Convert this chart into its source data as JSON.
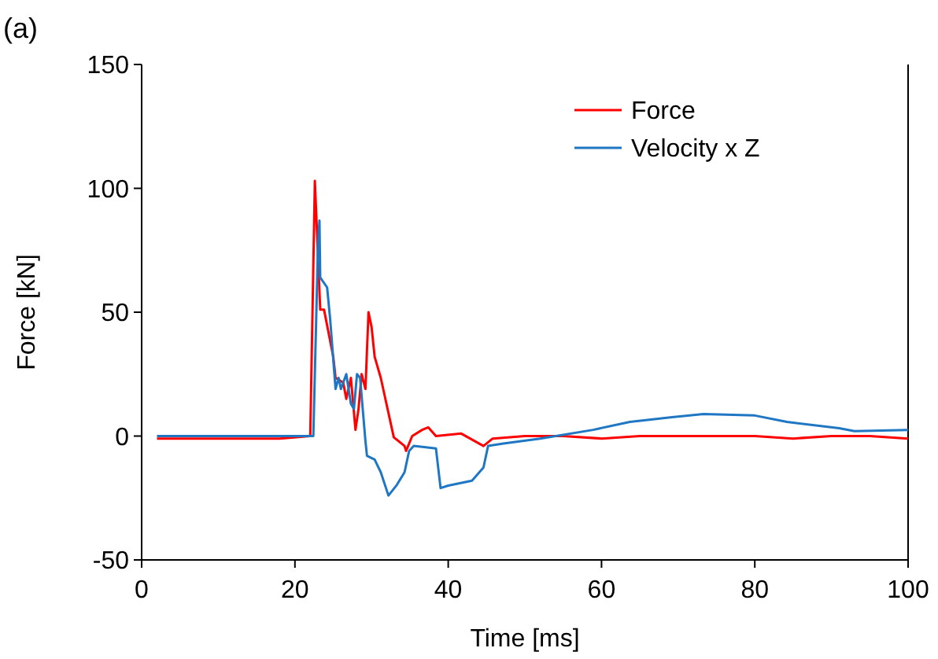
{
  "chart_data": {
    "type": "line",
    "xlabel": "Time [ms]",
    "ylabel": "Force [kN]",
    "annotations": [
      "(a)"
    ],
    "xlim": [
      0,
      100
    ],
    "xticks": [
      0,
      20,
      40,
      60,
      80,
      100
    ],
    "ylim": [
      -50,
      150
    ],
    "yticks": [
      -50,
      0,
      50,
      100,
      150
    ],
    "grid": false,
    "legend": "top right",
    "line_style": "solid",
    "series": [
      {
        "name": "Force",
        "color": "#ff0000",
        "x": [
          2,
          10,
          18,
          22,
          22.6,
          23.3,
          23.8,
          25,
          25.3,
          26.3,
          26.7,
          27.3,
          27.9,
          28.3,
          28.7,
          29.2,
          29.6,
          30,
          30.4,
          31.2,
          31.8,
          32.9,
          34.3,
          34.5,
          35.3,
          36.6,
          37.4,
          38.4,
          41.7,
          44.6,
          45.8,
          50,
          55,
          60,
          65,
          70,
          75,
          80,
          85,
          90,
          95,
          100
        ],
        "values": [
          -1,
          -1,
          -1,
          0,
          103,
          51,
          51,
          32,
          23.5,
          21.6,
          15,
          23.5,
          2.5,
          11,
          25,
          19,
          50,
          44,
          32,
          23.5,
          15,
          -0.5,
          -4,
          -6,
          0,
          2.5,
          3.5,
          0,
          1,
          -4,
          -1,
          0,
          0,
          -1,
          0,
          0,
          0,
          0,
          -1,
          0,
          0,
          -1
        ]
      },
      {
        "name": "Velocity x Z",
        "color": "#1f77c4",
        "x": [
          2,
          10,
          18,
          22.4,
          23,
          23.2,
          23.3,
          24.2,
          24.6,
          25.3,
          25.7,
          26,
          26.7,
          27.3,
          27.7,
          28.1,
          28.5,
          29.2,
          29.4,
          30.4,
          31.2,
          32.2,
          33.3,
          34.3,
          34.9,
          35.5,
          38.4,
          39,
          40,
          43.1,
          44.6,
          45.2,
          47.2,
          52,
          58.9,
          63.7,
          69.2,
          73.3,
          80,
          84.2,
          91,
          93,
          100
        ],
        "values": [
          0,
          0,
          0,
          0,
          76,
          87,
          64,
          60,
          47,
          19,
          23.5,
          19,
          25,
          13,
          11,
          25,
          23.5,
          -2,
          -8,
          -9.5,
          -14.6,
          -24,
          -19.7,
          -14.6,
          -6,
          -4,
          -5,
          -21,
          -20,
          -18,
          -12.7,
          -4,
          -3,
          -1,
          2.5,
          5.7,
          7.6,
          8.9,
          8.3,
          5.7,
          3.2,
          2,
          2.5
        ]
      }
    ]
  }
}
